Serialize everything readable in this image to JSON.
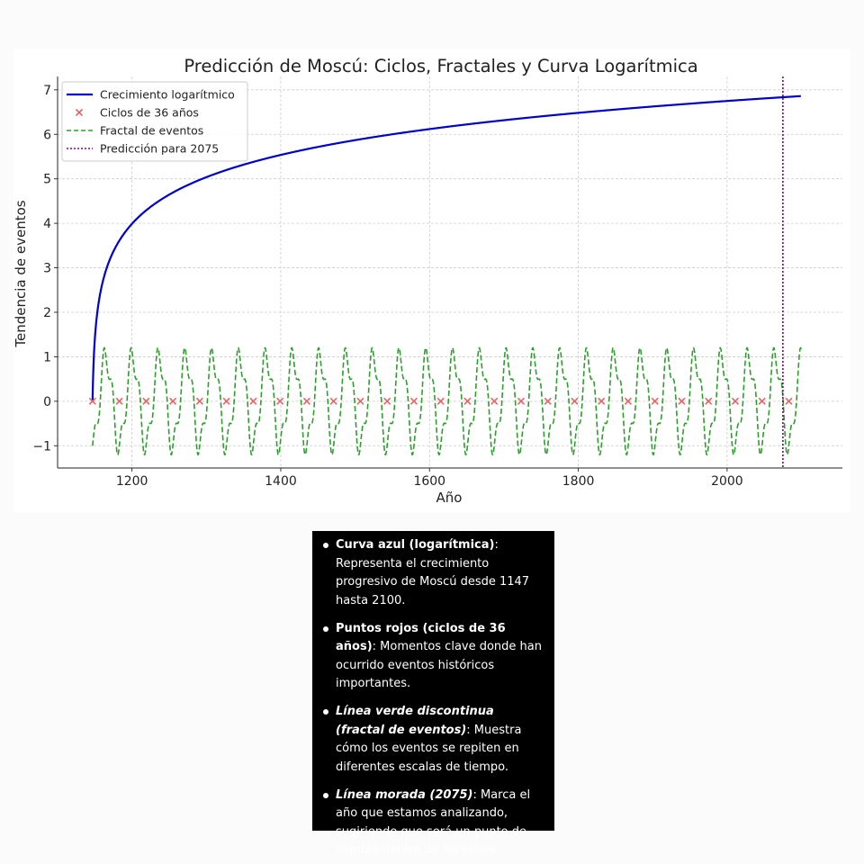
{
  "chart_data": {
    "type": "line",
    "title": "Predicción de Moscú: Ciclos, Fractales y Curva Logarítmica",
    "xlabel": "Año",
    "ylabel": "Tendencia de eventos",
    "xlim": [
      1100,
      2155
    ],
    "ylim": [
      -1.5,
      7.3
    ],
    "xticks": [
      1200,
      1400,
      1600,
      1800,
      2000
    ],
    "yticks": [
      7,
      6,
      5,
      4,
      3,
      2,
      1,
      0,
      -1
    ],
    "ytick_labels": [
      "7",
      "6",
      "5",
      "4",
      "3",
      "2",
      "1",
      "0",
      "−1"
    ],
    "grid": true,
    "legend_position": "top-left",
    "series": [
      {
        "name": "Crecimiento logarítmico",
        "kind": "line",
        "color": "#0000cc",
        "x_range": [
          1147,
          2100
        ],
        "formula": "ln(year - 1146)",
        "points": [
          [
            1147,
            0
          ],
          [
            1148,
            0.69
          ],
          [
            1150,
            1.39
          ],
          [
            1156,
            2.3
          ],
          [
            1166,
            3.0
          ],
          [
            1196,
            3.91
          ],
          [
            1246,
            4.61
          ],
          [
            1346,
            5.3
          ],
          [
            1546,
            5.99
          ],
          [
            1746,
            6.4
          ],
          [
            1946,
            6.68
          ],
          [
            2075,
            6.83
          ],
          [
            2100,
            6.86
          ]
        ]
      },
      {
        "name": "Ciclos de 36 años",
        "kind": "scatter",
        "marker": "x",
        "color": "#e06666",
        "x": [
          1147,
          1183,
          1219,
          1255,
          1291,
          1327,
          1363,
          1399,
          1435,
          1471,
          1507,
          1543,
          1579,
          1615,
          1651,
          1687,
          1723,
          1759,
          1795,
          1831,
          1867,
          1903,
          1939,
          1975,
          2011,
          2047,
          2083
        ],
        "y": [
          0,
          0,
          0,
          0,
          0,
          0,
          0,
          0,
          0,
          0,
          0,
          0,
          0,
          0,
          0,
          0,
          0,
          0,
          0,
          0,
          0,
          0,
          0,
          0,
          0,
          0,
          0
        ]
      },
      {
        "name": "Fractal de eventos",
        "kind": "line",
        "style": "dashed",
        "color": "#2e9e2e",
        "x_range": [
          1147,
          2100
        ],
        "formula": "sin(2*pi*(t-1147)/36 - pi/2) + 0.3*sin(2*pi*(t-1147)/12)",
        "amplitude_range": [
          -1.12,
          1.12
        ],
        "period_years": 36
      },
      {
        "name": "Predicción para 2075",
        "kind": "vline",
        "style": "dotted",
        "color": "#800080",
        "x": 2075
      }
    ]
  },
  "notes": [
    {
      "head": "Curva azul (logarítmica)",
      "head_italic": false,
      "body": ": Representa el crecimiento progresivo de Moscú desde 1147 hasta 2100."
    },
    {
      "head": "Puntos rojos (ciclos de 36 años)",
      "head_italic": false,
      "body": ": Momentos clave donde han ocurrido eventos históricos importantes."
    },
    {
      "head": "Línea verde discontinua (fractal de eventos)",
      "head_italic": true,
      "body": ": Muestra cómo los eventos se repiten en diferentes escalas de tiempo."
    },
    {
      "head": "Línea morada (2075)",
      "head_italic": true,
      "body": ": Marca el año que estamos analizando, sugiriendo que será un punto de cambio dentro de los ciclos."
    }
  ]
}
